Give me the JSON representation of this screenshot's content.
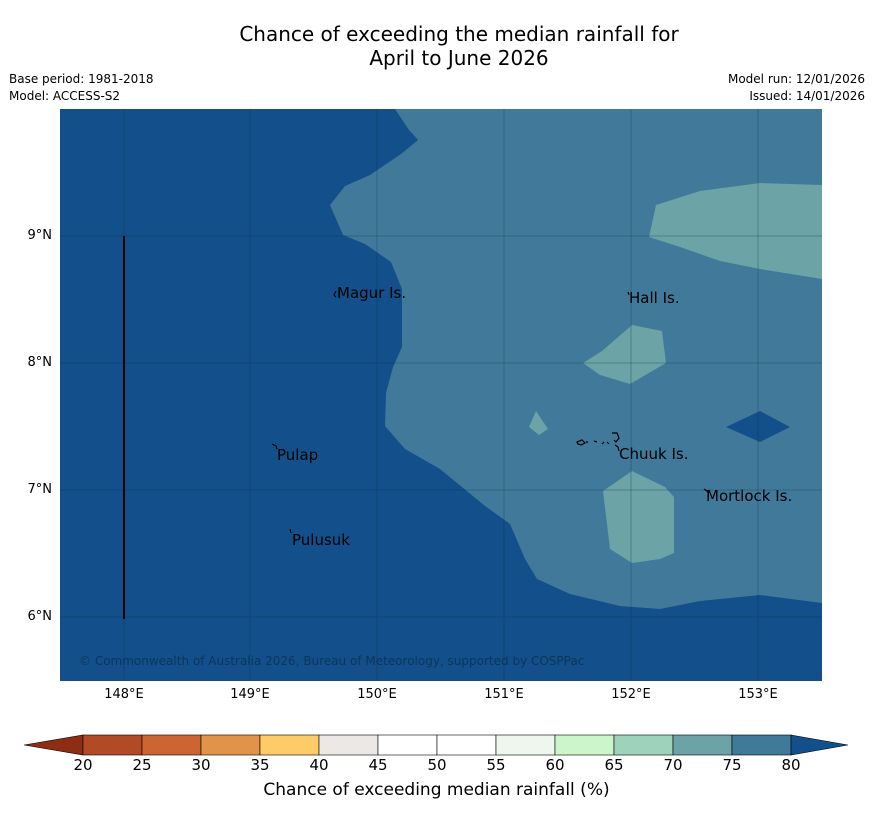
{
  "title_line1": "Chance of exceeding the median rainfall for",
  "title_line2": "April to June 2026",
  "meta": {
    "base_period": "Base period: 1981-2018",
    "model": "Model: ACCESS-S2",
    "model_run": "Model run: 12/01/2026",
    "issued": "Issued: 14/01/2026"
  },
  "map": {
    "lat_labels": [
      "9°N",
      "8°N",
      "7°N",
      "6°N"
    ],
    "lon_labels": [
      "148°E",
      "149°E",
      "150°E",
      "151°E",
      "152°E",
      "153°E"
    ],
    "places": [
      "Magur Is.",
      "Hall Is.",
      "Pulap",
      "Chuuk Is.",
      "Mortlock Is.",
      "Pulusuk"
    ],
    "copyright": "© Commonwealth of Australia 2026, Bureau of Meteorology, supported by COSPPac",
    "colors": {
      "gt80": "#134f8a",
      "75_80": "#41799a",
      "70_75": "#6ba3a6"
    }
  },
  "colorbar": {
    "ticks": [
      "20",
      "25",
      "30",
      "35",
      "40",
      "45",
      "50",
      "55",
      "60",
      "65",
      "70",
      "75",
      "80"
    ],
    "colors": [
      "#b24a26",
      "#cd6533",
      "#e0944a",
      "#fdcb68",
      "#ece8e5",
      "#ffffff",
      "#ffffff",
      "#eef7ee",
      "#ccf5cb",
      "#9dd3ba",
      "#6ba3a6",
      "#41799a"
    ],
    "low_color": "#8c2d14",
    "high_color": "#134f8a",
    "label": "Chance of exceeding median rainfall (%)"
  }
}
